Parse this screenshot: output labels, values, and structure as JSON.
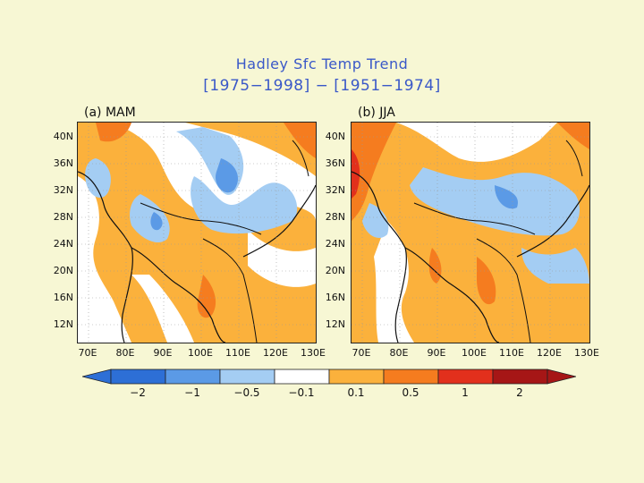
{
  "title": {
    "line1": "Hadley Sfc Temp Trend",
    "line2": "[1975−1998] − [1951−1974]"
  },
  "panels": [
    {
      "label": "(a) MAM"
    },
    {
      "label": "(b) JJA"
    }
  ],
  "latitudes": [
    "40N",
    "36N",
    "32N",
    "28N",
    "24N",
    "20N",
    "16N",
    "12N"
  ],
  "longitudes": [
    "70E",
    "80E",
    "90E",
    "100E",
    "110E",
    "120E",
    "130E"
  ],
  "colorbar": {
    "labels": [
      "−2",
      "−1",
      "−0.5",
      "−0.1",
      "0.1",
      "0.5",
      "1",
      "2"
    ],
    "colors": [
      "#2d6fd6",
      "#5b9ae6",
      "#a4cdf3",
      "#ffffff",
      "#fbb13c",
      "#f57c1f",
      "#e2301c",
      "#a61616"
    ]
  },
  "field_colors": {
    "warm_light": "#fbb13c",
    "warm_mid": "#f57c1f",
    "warm_strong": "#e2301c",
    "cool_light": "#a4cdf3",
    "cool_mid": "#5b9ae6",
    "neutral": "#ffffff"
  }
}
